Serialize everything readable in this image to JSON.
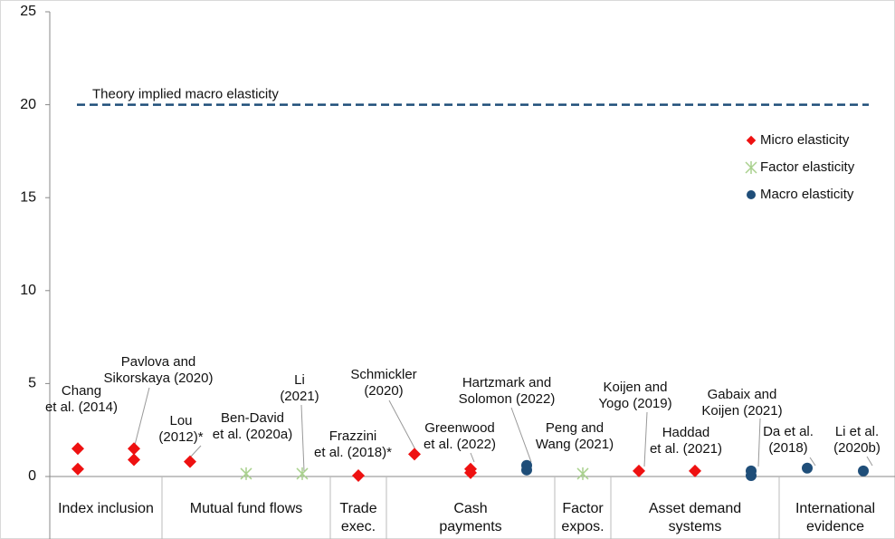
{
  "chart_data": {
    "type": "scatter",
    "ylim": [
      0,
      25
    ],
    "yticks": [
      0,
      5,
      10,
      15,
      20,
      25
    ],
    "reference_line": {
      "value": 20,
      "label": "Theory implied macro elasticity",
      "color": "#1f4e79"
    },
    "series": [
      {
        "name": "Micro elasticity",
        "color": "#ee1111",
        "marker": "diamond"
      },
      {
        "name": "Factor elasticity",
        "color": "#a9d18e",
        "marker": "asterisk"
      },
      {
        "name": "Macro elasticity",
        "color": "#1f4e79",
        "marker": "circle"
      }
    ],
    "legend": "right",
    "groups": [
      {
        "name": [
          "Index inclusion"
        ],
        "studies": [
          {
            "label": [
              "Chang",
              "et al. (2014)"
            ],
            "series": "Micro elasticity",
            "values": [
              1.5,
              0.4
            ]
          },
          {
            "label": [
              "Pavlova and",
              "Sikorskaya (2020)"
            ],
            "series": "Micro elasticity",
            "values": [
              1.5,
              0.9
            ]
          }
        ]
      },
      {
        "name": [
          "Mutual fund flows"
        ],
        "studies": [
          {
            "label": [
              "Lou",
              "(2012)*"
            ],
            "series": "Micro elasticity",
            "values": [
              0.8
            ]
          },
          {
            "label": [
              "Ben-David",
              "et al. (2020a)"
            ],
            "series": "Factor elasticity",
            "values": [
              0.15
            ]
          },
          {
            "label": [
              "Li",
              "(2021)"
            ],
            "series": "Factor elasticity",
            "values": [
              0.15
            ]
          }
        ]
      },
      {
        "name": [
          "Trade",
          "exec."
        ],
        "studies": [
          {
            "label": [
              "Frazzini",
              "et al. (2018)*"
            ],
            "series": "Micro elasticity",
            "values": [
              0.05
            ]
          }
        ]
      },
      {
        "name": [
          "Cash",
          "payments"
        ],
        "studies": [
          {
            "label": [
              "Schmickler",
              "(2020)"
            ],
            "series": "Micro elasticity",
            "values": [
              1.2
            ]
          },
          {
            "label": [
              "Greenwood",
              "et al. (2022)"
            ],
            "series": "Micro elasticity",
            "values": [
              0.4,
              0.2
            ]
          },
          {
            "label": [
              "Hartzmark and",
              "Solomon (2022)"
            ],
            "series": "Macro elasticity",
            "values": [
              0.6,
              0.35
            ]
          }
        ]
      },
      {
        "name": [
          "Factor",
          "expos."
        ],
        "studies": [
          {
            "label": [
              "Peng and",
              "Wang (2021)"
            ],
            "series": "Factor elasticity",
            "values": [
              0.15
            ]
          }
        ]
      },
      {
        "name": [
          "Asset demand",
          "systems"
        ],
        "studies": [
          {
            "label": [
              "Koijen and",
              "Yogo (2019)"
            ],
            "series": "Micro elasticity",
            "values": [
              0.3
            ]
          },
          {
            "label": [
              "Haddad",
              "et al. (2021)"
            ],
            "series": "Micro elasticity",
            "values": [
              0.3
            ]
          },
          {
            "label": [
              "Gabaix and",
              "Koijen (2021)"
            ],
            "series": "Macro elasticity",
            "values": [
              0.3,
              0.05
            ]
          }
        ]
      },
      {
        "name": [
          "International",
          "evidence"
        ],
        "studies": [
          {
            "label": [
              "Da et al.",
              "(2018)"
            ],
            "series": "Macro elasticity",
            "values": [
              0.45
            ]
          },
          {
            "label": [
              "Li et al.",
              "(2020b)"
            ],
            "series": "Macro elasticity",
            "values": [
              0.3
            ]
          }
        ]
      }
    ]
  }
}
